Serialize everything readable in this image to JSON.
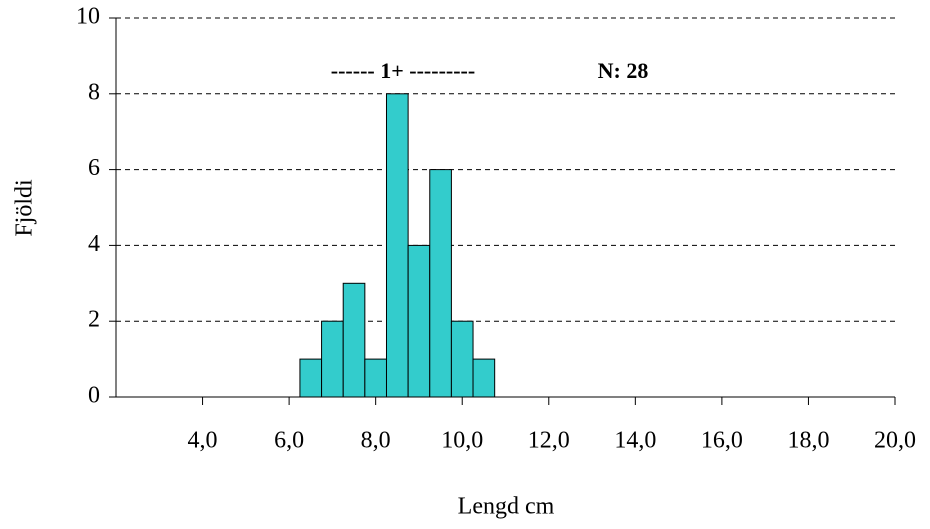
{
  "chart_data": {
    "type": "histogram",
    "annotations": [
      "------  1+ ---------",
      "N:  28"
    ],
    "xlabel": "Lengd cm",
    "ylabel": "Fjöldi",
    "bins": [
      6.25,
      6.75,
      7.25,
      7.75,
      8.25,
      8.75,
      9.25,
      9.75,
      10.25,
      10.75
    ],
    "values": [
      1,
      2,
      3,
      1,
      8,
      4,
      6,
      2,
      1
    ],
    "color": "#33cccc",
    "xlim": [
      2,
      20
    ],
    "ylim": [
      0,
      10
    ],
    "xticks": [
      {
        "value": 4,
        "label": "4,0"
      },
      {
        "value": 6,
        "label": "6,0"
      },
      {
        "value": 8,
        "label": "8,0"
      },
      {
        "value": 10,
        "label": "10,0"
      },
      {
        "value": 12,
        "label": "12,0"
      },
      {
        "value": 14,
        "label": "14,0"
      },
      {
        "value": 16,
        "label": "16,0"
      },
      {
        "value": 18,
        "label": "18,0"
      },
      {
        "value": 20,
        "label": "20,0"
      }
    ],
    "yticks": [
      0,
      2,
      4,
      6,
      8,
      10
    ],
    "grid": true
  }
}
